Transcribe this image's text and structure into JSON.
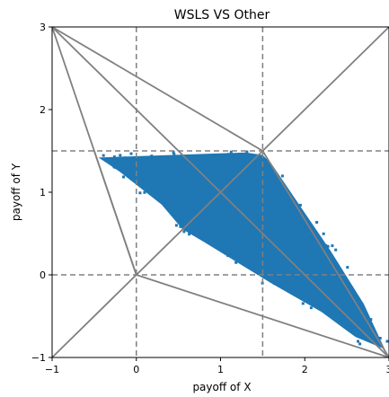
{
  "chart_data": {
    "type": "scatter",
    "title": "WSLS VS Other",
    "xlabel": "payoff of X",
    "ylabel": "payoff of Y",
    "xlim": [
      -1,
      3
    ],
    "ylim": [
      -1,
      3
    ],
    "xticks": [
      -1,
      0,
      1,
      2,
      3
    ],
    "yticks": [
      -1,
      0,
      1,
      2,
      3
    ],
    "grid": false,
    "point_color": "#1f77b4",
    "line_color": "#808080",
    "reference_lines": {
      "dashed_x": [
        0,
        1.5
      ],
      "dashed_y": [
        0,
        1.5
      ]
    },
    "outline_segments": [
      [
        [
          -1,
          3
        ],
        [
          0,
          0
        ]
      ],
      [
        [
          0,
          0
        ],
        [
          3,
          -1
        ]
      ],
      [
        [
          -1,
          -1
        ],
        [
          3,
          3
        ]
      ],
      [
        [
          -1,
          3
        ],
        [
          3,
          -1
        ]
      ],
      [
        [
          -1,
          3
        ],
        [
          1.5,
          1.5
        ]
      ],
      [
        [
          1.5,
          1.5
        ],
        [
          3,
          -1
        ]
      ],
      [
        [
          -0.5,
          1.5
        ],
        [
          0,
          0
        ]
      ]
    ],
    "scatter_region": {
      "description": "dense cloud of payoff pairs",
      "boundary": [
        [
          -0.45,
          1.42
        ],
        [
          1.3,
          1.48
        ],
        [
          1.5,
          1.45
        ],
        [
          1.6,
          1.35
        ],
        [
          1.9,
          0.9
        ],
        [
          2.3,
          0.3
        ],
        [
          2.7,
          -0.35
        ],
        [
          2.95,
          -0.9
        ],
        [
          2.6,
          -0.75
        ],
        [
          2.2,
          -0.45
        ],
        [
          1.6,
          -0.1
        ],
        [
          1.2,
          0.15
        ],
        [
          0.8,
          0.4
        ],
        [
          0.55,
          0.55
        ],
        [
          0.3,
          0.85
        ],
        [
          -0.2,
          1.25
        ]
      ]
    }
  }
}
